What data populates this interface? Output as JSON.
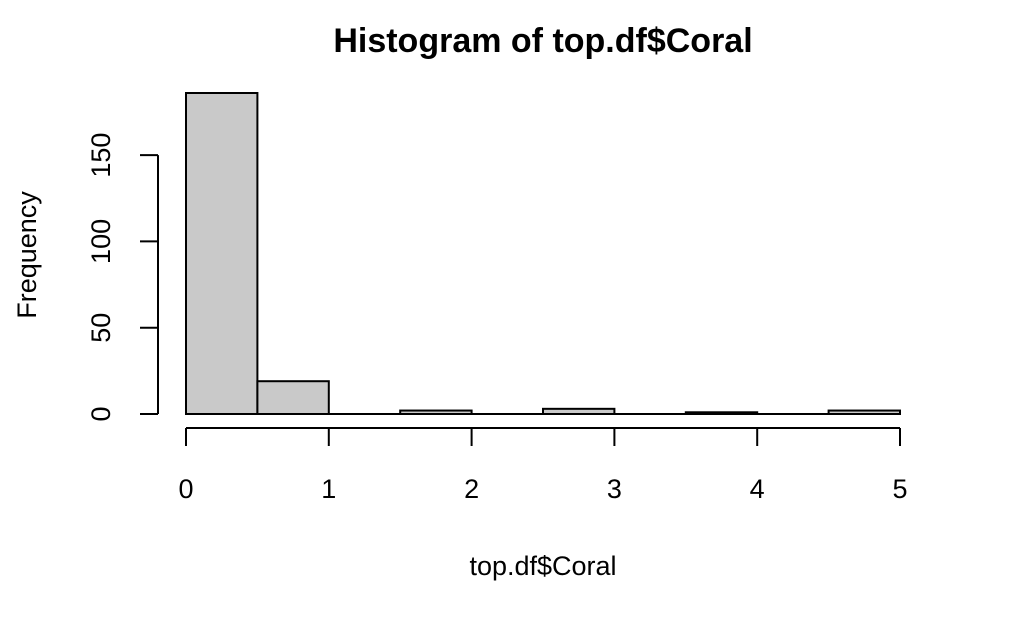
{
  "chart_data": {
    "type": "bar",
    "title": "Histogram of top.df$Coral",
    "xlabel": "top.df$Coral",
    "ylabel": "Frequency",
    "bins": [
      {
        "start": 0.0,
        "end": 0.5,
        "count": 186
      },
      {
        "start": 0.5,
        "end": 1.0,
        "count": 19
      },
      {
        "start": 1.0,
        "end": 1.5,
        "count": 0
      },
      {
        "start": 1.5,
        "end": 2.0,
        "count": 2
      },
      {
        "start": 2.0,
        "end": 2.5,
        "count": 0
      },
      {
        "start": 2.5,
        "end": 3.0,
        "count": 3
      },
      {
        "start": 3.0,
        "end": 3.5,
        "count": 0
      },
      {
        "start": 3.5,
        "end": 4.0,
        "count": 1
      },
      {
        "start": 4.0,
        "end": 4.5,
        "count": 0
      },
      {
        "start": 4.5,
        "end": 5.0,
        "count": 2
      }
    ],
    "xlim": [
      0,
      5
    ],
    "ylim": [
      0,
      186
    ],
    "x_ticks": [
      "0",
      "1",
      "2",
      "3",
      "4",
      "5"
    ],
    "y_ticks": [
      "0",
      "50",
      "100",
      "150"
    ],
    "grid": false,
    "legend": "none",
    "bar_fill": "#c9c9c9",
    "bar_stroke": "#000000"
  }
}
